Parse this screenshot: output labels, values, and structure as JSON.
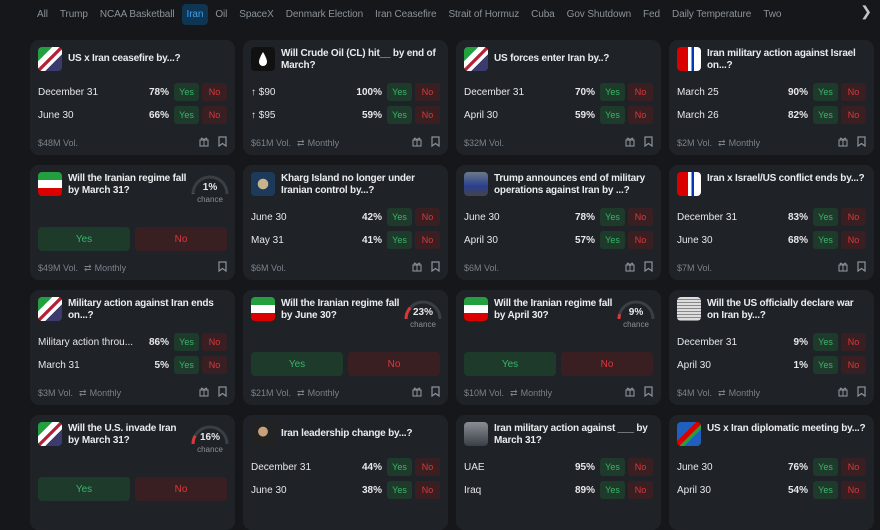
{
  "tabs": [
    "All",
    "Trump",
    "NCAA Basketball",
    "Iran",
    "Oil",
    "SpaceX",
    "Denmark Election",
    "Iran Ceasefire",
    "Strait of Hormuz",
    "Cuba",
    "Gov Shutdown",
    "Fed",
    "Daily Temperature",
    "Two"
  ],
  "active_tab": "Iran",
  "yes": "Yes",
  "no": "No",
  "chance": "chance",
  "colors": {
    "yes": "#3cb56a",
    "no": "#d9383b",
    "accent": "#3ea0f0"
  },
  "cards": [
    {
      "title": "US x Iran ceasefire by...?",
      "icon": "us-iran-flags",
      "outcomes": [
        {
          "label": "December 31",
          "pct": "78%"
        },
        {
          "label": "June 30",
          "pct": "66%"
        }
      ],
      "volume": "$48M Vol.",
      "recurrence": "",
      "gift": true
    },
    {
      "title": "Will Crude Oil (CL) hit__ by end of March?",
      "icon": "oil-drop",
      "outcomes": [
        {
          "label": "↑ $90",
          "pct": "100%"
        },
        {
          "label": "↑ $95",
          "pct": "59%"
        }
      ],
      "volume": "$61M Vol.",
      "recurrence": "Monthly",
      "gift": true
    },
    {
      "title": "US forces enter Iran by..?",
      "icon": "us-iran-flags",
      "outcomes": [
        {
          "label": "December 31",
          "pct": "70%"
        },
        {
          "label": "April 30",
          "pct": "59%"
        }
      ],
      "volume": "$32M Vol.",
      "recurrence": "",
      "gift": true
    },
    {
      "title": "Iran military action against Israel on...?",
      "icon": "iran-israel-flags",
      "outcomes": [
        {
          "label": "March 25",
          "pct": "90%"
        },
        {
          "label": "March 26",
          "pct": "82%"
        }
      ],
      "volume": "$2M Vol.",
      "recurrence": "Monthly",
      "gift": true
    },
    {
      "title": "Will the Iranian regime fall by March 31?",
      "icon": "iran-flag",
      "chance": 1,
      "chance_label": "1%",
      "volume": "$49M Vol.",
      "recurrence": "Monthly",
      "gift": false
    },
    {
      "title": "Kharg Island no longer under Iranian control by...?",
      "icon": "island-map",
      "outcomes": [
        {
          "label": "June 30",
          "pct": "42%"
        },
        {
          "label": "May 31",
          "pct": "41%"
        }
      ],
      "volume": "$6M Vol.",
      "recurrence": "",
      "gift": true
    },
    {
      "title": "Trump announces end of military operations against Iran by ...?",
      "icon": "trump-photo",
      "outcomes": [
        {
          "label": "June 30",
          "pct": "78%"
        },
        {
          "label": "April 30",
          "pct": "57%"
        }
      ],
      "volume": "$6M Vol.",
      "recurrence": "",
      "gift": true
    },
    {
      "title": "Iran x Israel/US conflict ends by...?",
      "icon": "iran-israel-flags",
      "outcomes": [
        {
          "label": "December 31",
          "pct": "83%"
        },
        {
          "label": "June 30",
          "pct": "68%"
        }
      ],
      "volume": "$7M Vol.",
      "recurrence": "",
      "gift": true
    },
    {
      "title": "Military action against Iran ends on...?",
      "icon": "us-iran-flags",
      "outcomes": [
        {
          "label": "Military action throu...",
          "pct": "86%"
        },
        {
          "label": "March 31",
          "pct": "5%"
        }
      ],
      "volume": "$3M Vol.",
      "recurrence": "Monthly",
      "gift": true
    },
    {
      "title": "Will the Iranian regime fall by June 30?",
      "icon": "iran-flag",
      "chance": 23,
      "chance_label": "23%",
      "volume": "$21M Vol.",
      "recurrence": "Monthly",
      "gift": true
    },
    {
      "title": "Will the Iranian regime fall by April 30?",
      "icon": "iran-flag",
      "chance": 9,
      "chance_label": "9%",
      "volume": "$10M Vol.",
      "recurrence": "Monthly",
      "gift": true
    },
    {
      "title": "Will the US officially declare war on Iran by...?",
      "icon": "newspaper",
      "outcomes": [
        {
          "label": "December 31",
          "pct": "9%"
        },
        {
          "label": "April 30",
          "pct": "1%"
        }
      ],
      "volume": "$4M Vol.",
      "recurrence": "Monthly",
      "gift": true
    },
    {
      "title": "Will the U.S. invade Iran by March 31?",
      "icon": "us-iran-flags",
      "chance": 16,
      "chance_label": "16%",
      "volume": "",
      "recurrence": "",
      "gift": false
    },
    {
      "title": "Iran leadership change by...?",
      "icon": "leader-photo",
      "outcomes": [
        {
          "label": "December 31",
          "pct": "44%"
        },
        {
          "label": "June 30",
          "pct": "38%"
        }
      ],
      "volume": "",
      "recurrence": "",
      "gift": false
    },
    {
      "title": "Iran military action against ___ by March 31?",
      "icon": "missiles-photo",
      "outcomes": [
        {
          "label": "UAE",
          "pct": "95%"
        },
        {
          "label": "Iraq",
          "pct": "89%"
        }
      ],
      "volume": "",
      "recurrence": "",
      "gift": false
    },
    {
      "title": "US x Iran diplomatic meeting by...?",
      "icon": "diplomacy-flags",
      "outcomes": [
        {
          "label": "June 30",
          "pct": "76%"
        },
        {
          "label": "April 30",
          "pct": "54%"
        }
      ],
      "volume": "",
      "recurrence": "",
      "gift": false
    }
  ]
}
